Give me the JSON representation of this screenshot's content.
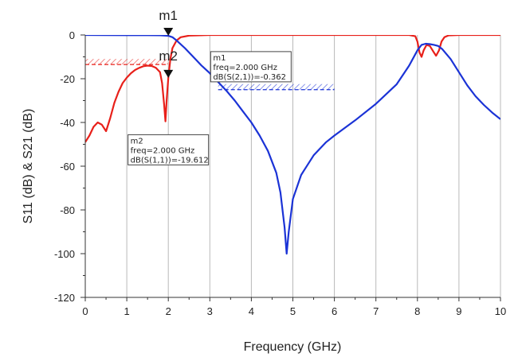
{
  "chart_data": {
    "type": "line",
    "xlabel": "Frequency (GHz)",
    "ylabel": "S11 (dB) & S21 (dB)",
    "xlim": [
      0,
      10
    ],
    "ylim": [
      -120,
      0
    ],
    "x_ticks": [
      0,
      1,
      2,
      3,
      4,
      5,
      6,
      7,
      8,
      9,
      10
    ],
    "x_tick_labels": [
      "0",
      "1",
      "2",
      "3",
      "4",
      "5",
      "6",
      "7",
      "8",
      "9",
      "10"
    ],
    "y_ticks": [
      0,
      -20,
      -40,
      -60,
      -80,
      -100,
      -120
    ],
    "y_tick_labels": [
      "0",
      "-20",
      "-40",
      "-60",
      "-80",
      "-100",
      "-120"
    ],
    "grid": "vertical",
    "series": [
      {
        "name": "dB(S(1,1))",
        "color": "#e8201a",
        "points": [
          [
            0,
            -49
          ],
          [
            0.1,
            -46
          ],
          [
            0.2,
            -42
          ],
          [
            0.3,
            -40
          ],
          [
            0.4,
            -41
          ],
          [
            0.5,
            -44
          ],
          [
            0.6,
            -38
          ],
          [
            0.7,
            -31
          ],
          [
            0.8,
            -26
          ],
          [
            0.9,
            -22
          ],
          [
            1.0,
            -19.5
          ],
          [
            1.1,
            -17.5
          ],
          [
            1.2,
            -16
          ],
          [
            1.3,
            -15
          ],
          [
            1.4,
            -14.3
          ],
          [
            1.5,
            -14
          ],
          [
            1.6,
            -14.2
          ],
          [
            1.7,
            -15
          ],
          [
            1.8,
            -17
          ],
          [
            1.85,
            -22
          ],
          [
            1.9,
            -32
          ],
          [
            1.93,
            -39.5
          ],
          [
            1.96,
            -30
          ],
          [
            2.0,
            -19.6
          ],
          [
            2.05,
            -11
          ],
          [
            2.1,
            -6
          ],
          [
            2.2,
            -2.5
          ],
          [
            2.3,
            -1
          ],
          [
            2.5,
            -0.3
          ],
          [
            3,
            0
          ],
          [
            7.8,
            0
          ],
          [
            7.95,
            -0.6
          ],
          [
            8.0,
            -3
          ],
          [
            8.05,
            -8
          ],
          [
            8.1,
            -10
          ],
          [
            8.15,
            -7
          ],
          [
            8.22,
            -4.5
          ],
          [
            8.3,
            -5
          ],
          [
            8.38,
            -7.5
          ],
          [
            8.45,
            -9.5
          ],
          [
            8.52,
            -7
          ],
          [
            8.58,
            -3
          ],
          [
            8.65,
            -1
          ],
          [
            8.75,
            -0.2
          ],
          [
            9.0,
            0
          ],
          [
            10,
            0
          ]
        ]
      },
      {
        "name": "dB(S(2,1))",
        "color": "#1b33d6",
        "points": [
          [
            0,
            0
          ],
          [
            1,
            -0.1
          ],
          [
            1.5,
            -0.1
          ],
          [
            1.8,
            -0.15
          ],
          [
            2.0,
            -0.362
          ],
          [
            2.1,
            -1
          ],
          [
            2.2,
            -2.5
          ],
          [
            2.4,
            -6
          ],
          [
            2.6,
            -10
          ],
          [
            2.8,
            -14
          ],
          [
            3.0,
            -17.5
          ],
          [
            3.2,
            -21.5
          ],
          [
            3.4,
            -25.5
          ],
          [
            3.6,
            -30
          ],
          [
            3.8,
            -35
          ],
          [
            4.0,
            -40
          ],
          [
            4.2,
            -46
          ],
          [
            4.4,
            -53
          ],
          [
            4.6,
            -63
          ],
          [
            4.7,
            -72
          ],
          [
            4.8,
            -88
          ],
          [
            4.85,
            -100
          ],
          [
            4.9,
            -90
          ],
          [
            5.0,
            -75
          ],
          [
            5.2,
            -64
          ],
          [
            5.5,
            -55
          ],
          [
            5.8,
            -49
          ],
          [
            6.0,
            -46
          ],
          [
            6.5,
            -39
          ],
          [
            7.0,
            -31.5
          ],
          [
            7.5,
            -22.5
          ],
          [
            7.8,
            -14
          ],
          [
            8.0,
            -7
          ],
          [
            8.1,
            -4.5
          ],
          [
            8.2,
            -4
          ],
          [
            8.3,
            -4.2
          ],
          [
            8.4,
            -4.5
          ],
          [
            8.5,
            -5
          ],
          [
            8.6,
            -6.5
          ],
          [
            8.8,
            -11
          ],
          [
            9.0,
            -17
          ],
          [
            9.2,
            -23
          ],
          [
            9.4,
            -28
          ],
          [
            9.6,
            -32
          ],
          [
            9.8,
            -35.5
          ],
          [
            10,
            -38.5
          ]
        ]
      }
    ],
    "markers": [
      {
        "name": "m1",
        "series": "dB(S(2,1))",
        "x": 2.0,
        "y": -0.362,
        "readout": [
          "m1",
          "freq=2.000 GHz",
          "dB(S(2,1))=-0.362"
        ],
        "limit_line_y": -25,
        "limit_line_x_range": [
          3.2,
          6.0
        ],
        "limit_color": "#1b33d6"
      },
      {
        "name": "m2",
        "series": "dB(S(1,1))",
        "x": 2.0,
        "y": -19.612,
        "readout": [
          "m2",
          "freq=2.000 GHz",
          "dB(S(1,1))=-19.612"
        ],
        "limit_line_y": -13.5,
        "limit_line_x_range": [
          0,
          2.0
        ],
        "limit_color": "#e8201a"
      }
    ]
  }
}
